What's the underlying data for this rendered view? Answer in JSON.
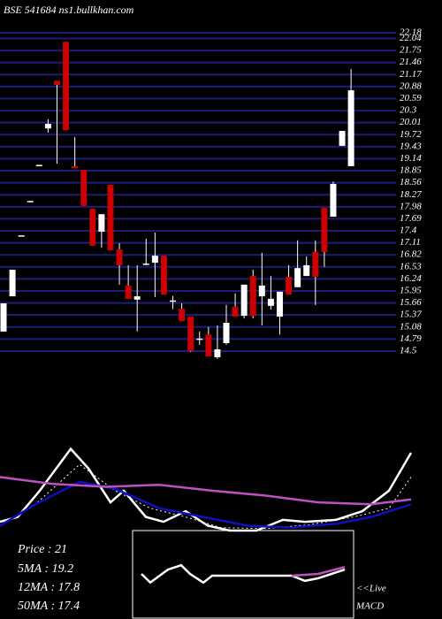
{
  "chart_data": [
    {
      "type": "candlestick",
      "title": "BSE 541684 ns1.bullkhan.com",
      "open": [
        14.97,
        15.82,
        17.29,
        18.12,
        18.99,
        19.87,
        21.02,
        21.96,
        18.96,
        18.87,
        17.93,
        17.38,
        18.51,
        16.95,
        16.08,
        15.74,
        16.61,
        16.63,
        16.8,
        15.72,
        15.52,
        15.33,
        14.8,
        14.9,
        14.35,
        14.69,
        15.57,
        15.35,
        16.31,
        15.82,
        15.59,
        15.33,
        16.29,
        16.04,
        16.31,
        16.89,
        17.95,
        17.74,
        19.45,
        18.96
      ],
      "high": [
        15.65,
        16.46,
        17.29,
        18.12,
        18.99,
        20.09,
        21.02,
        21.96,
        19.66,
        18.87,
        17.93,
        17.8,
        18.51,
        17.1,
        16.57,
        16.57,
        17.21,
        17.36,
        16.8,
        15.83,
        15.65,
        15.33,
        14.97,
        15.08,
        15.12,
        15.61,
        15.89,
        16.1,
        16.46,
        16.87,
        16.31,
        15.93,
        16.57,
        17.17,
        16.78,
        17.17,
        17.95,
        18.59,
        19.81,
        21.3
      ],
      "low": [
        14.97,
        15.82,
        17.29,
        18.12,
        18.99,
        19.77,
        19.02,
        19.83,
        18.91,
        18.0,
        17.04,
        16.99,
        16.93,
        16.1,
        15.76,
        14.97,
        16.57,
        15.8,
        15.86,
        15.51,
        15.22,
        14.48,
        14.65,
        14.37,
        14.31,
        14.65,
        15.33,
        15.29,
        15.29,
        15.12,
        15.5,
        14.9,
        15.86,
        16.04,
        16.31,
        15.61,
        16.53,
        17.74,
        19.45,
        18.96
      ],
      "close": [
        15.65,
        16.46,
        17.29,
        18.12,
        18.99,
        19.98,
        20.92,
        19.83,
        18.91,
        18.0,
        17.04,
        17.8,
        16.93,
        16.57,
        15.76,
        15.82,
        16.61,
        16.8,
        15.86,
        15.72,
        15.22,
        14.5,
        14.8,
        14.37,
        14.54,
        15.18,
        15.33,
        16.1,
        15.35,
        16.08,
        15.76,
        15.93,
        15.86,
        16.5,
        16.57,
        16.29,
        16.89,
        18.53,
        19.81,
        20.79
      ],
      "up_color": "#ffffff",
      "down_color": "#cc0000",
      "grid_color": "#1c1c7a",
      "grid": true,
      "ylim": [
        14.2,
        22.35
      ],
      "yticks": [
        22.18,
        22.04,
        21.75,
        21.46,
        21.17,
        20.88,
        20.59,
        20.3,
        20.01,
        19.72,
        19.43,
        19.14,
        18.85,
        18.56,
        18.27,
        17.98,
        17.69,
        17.4,
        17.11,
        16.82,
        16.53,
        16.24,
        15.95,
        15.66,
        15.37,
        15.08,
        14.79,
        14.5
      ]
    },
    {
      "type": "line",
      "xlim": [
        0,
        50
      ],
      "ylim": [
        0,
        100
      ],
      "labels": [
        "Price   : 21",
        "5MA  : 19.2",
        "12MA : 17.8",
        "50MA : 17.4"
      ],
      "series": [
        {
          "color": "#ffffff",
          "dash": false,
          "x": [
            0,
            2,
            4.5,
            8,
            10,
            12.5,
            14,
            16.5,
            18.5,
            21,
            23.5,
            26,
            29,
            32,
            34.5,
            38,
            41,
            44,
            46.5
          ],
          "values": [
            9,
            14,
            41,
            84,
            64,
            29,
            41,
            14,
            9,
            20,
            5,
            0,
            0,
            11,
            9,
            11,
            20,
            41,
            80
          ]
        },
        {
          "color": "#ffffff",
          "dash": true,
          "x": [
            0,
            4,
            9,
            13,
            17,
            21,
            25,
            30,
            35,
            40,
            44,
            46.5
          ],
          "values": [
            5,
            27,
            68,
            41,
            23,
            14,
            3,
            2,
            6,
            14,
            23,
            55
          ]
        },
        {
          "color": "#1010c0",
          "dash": false,
          "x": [
            0,
            4,
            9,
            13,
            18,
            23,
            28,
            33,
            38,
            42,
            46.5
          ],
          "values": [
            5,
            27,
            50,
            43,
            23,
            14,
            5,
            3,
            7,
            14,
            27
          ]
        },
        {
          "color": "#c050c0",
          "dash": false,
          "x": [
            0,
            6,
            12,
            18,
            24,
            30,
            36,
            42,
            46.5
          ],
          "values": [
            55,
            48,
            45,
            47,
            41,
            36,
            29,
            27,
            32
          ]
        }
      ]
    },
    {
      "type": "line",
      "xlim": [
        0,
        50
      ],
      "ylim": [
        -10,
        10
      ],
      "annotations": [
        "<<Live",
        "MACD"
      ],
      "series": [
        {
          "color": "#ffffff",
          "dash": false,
          "x": [
            16,
            17,
            19,
            20.5,
            21.5,
            23,
            24,
            33,
            34.5,
            36,
            37.5,
            39
          ],
          "values": [
            0.4,
            -1.6,
            1.4,
            2.4,
            0.4,
            -1.6,
            0,
            0,
            -1.2,
            -0.6,
            0.4,
            1.4
          ]
        },
        {
          "color": "#c050c0",
          "dash": false,
          "x": [
            33,
            36,
            39
          ],
          "values": [
            0,
            0.4,
            2
          ]
        }
      ]
    }
  ]
}
